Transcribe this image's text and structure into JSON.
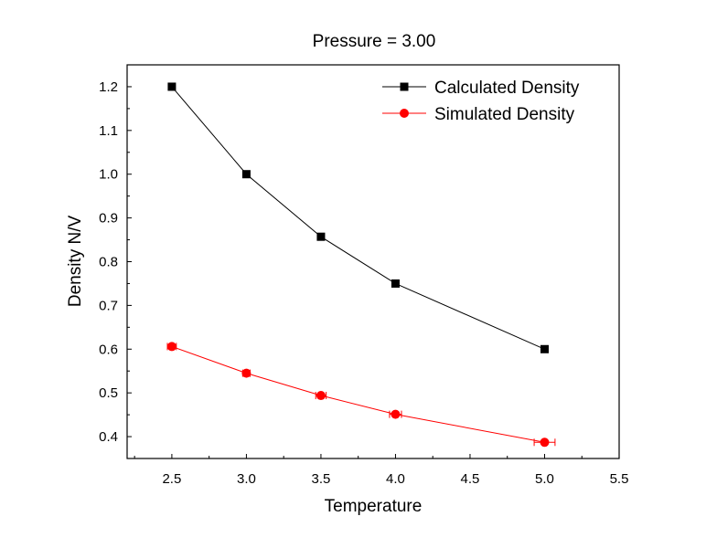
{
  "chart_data": {
    "type": "line",
    "title": "Pressure = 3.00",
    "xlabel": "Temperature",
    "ylabel": "Density N/V",
    "xlim": [
      2.2,
      5.5
    ],
    "ylim": [
      0.35,
      1.25
    ],
    "xticks": [
      "2.5",
      "3.0",
      "3.5",
      "4.0",
      "4.5",
      "5.0",
      "5.5"
    ],
    "xtick_values": [
      2.5,
      3.0,
      3.5,
      4.0,
      4.5,
      5.0,
      5.5
    ],
    "yticks": [
      "0.4",
      "0.5",
      "0.6",
      "0.7",
      "0.8",
      "0.9",
      "1.0",
      "1.1",
      "1.2"
    ],
    "ytick_values": [
      0.4,
      0.5,
      0.6,
      0.7,
      0.8,
      0.9,
      1.0,
      1.1,
      1.2
    ],
    "grid": false,
    "legend_position": "top-right",
    "series": [
      {
        "name": "Calculated Density",
        "color": "#000000",
        "marker": "square",
        "x": [
          2.5,
          3.0,
          3.5,
          4.0,
          5.0
        ],
        "y": [
          1.2,
          1.0,
          0.857,
          0.75,
          0.6
        ]
      },
      {
        "name": "Simulated Density",
        "color": "#ff0000",
        "marker": "circle",
        "x": [
          2.5,
          3.0,
          3.5,
          4.0,
          5.0
        ],
        "y": [
          0.606,
          0.545,
          0.494,
          0.451,
          0.387
        ],
        "xerr": [
          0.03,
          0.025,
          0.035,
          0.04,
          0.07
        ]
      }
    ]
  }
}
